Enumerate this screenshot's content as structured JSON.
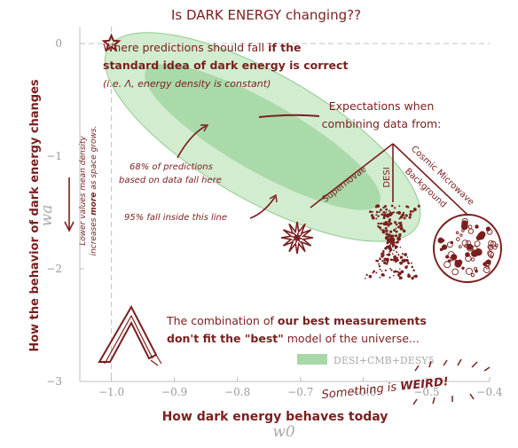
{
  "title": "Is DARK ENERGY changing??",
  "colors": {
    "ink": "#7a1f1f",
    "contour_inner": "#a8d8a8",
    "contour_outer": "#cfeccc",
    "contour_edge": "#8cc88c",
    "axis": "#bdbdbd",
    "tick_text": "#9a9a9a"
  },
  "chart_data": {
    "type": "contour",
    "xlabel": "w0",
    "ylabel": "wa",
    "xlim": [
      -1.05,
      -0.4
    ],
    "ylim": [
      -3,
      0.15
    ],
    "xticks": [
      -1.0,
      -0.9,
      -0.8,
      -0.7,
      -0.6,
      -0.5,
      -0.4
    ],
    "xtick_labels": [
      "−1.0",
      "−0.9",
      "−0.8",
      "−0.7",
      "−0.6",
      "−0.5",
      "−0.4"
    ],
    "yticks": [
      0,
      -1,
      -2,
      -3
    ],
    "ytick_labels": [
      "0",
      "−1",
      "−2",
      "−3"
    ],
    "reference_point": {
      "x": -1.0,
      "y": 0.0,
      "marker": "star"
    },
    "reference_lines": {
      "x": -1.0,
      "y": 0.0,
      "style": "dashed"
    },
    "series": [
      {
        "name": "DESI+CMB+DESY5",
        "contours": [
          {
            "level": "68%",
            "center": [
              -0.76,
              -0.83
            ],
            "axis_end": [
              -0.575,
              -1.42
            ],
            "half_width": 0.055
          },
          {
            "level": "95%",
            "center": [
              -0.76,
              -0.83
            ],
            "axis_end": [
              -0.515,
              -1.62
            ],
            "half_width": 0.1
          }
        ]
      }
    ],
    "legend": {
      "position": "bottom-right",
      "label": "DESI+CMB+DESY5"
    }
  },
  "axes_text": {
    "x_description": "How dark energy behaves today",
    "y_description": "How the behavior of dark energy changes",
    "y_side_note_1": "Lower values mean density",
    "y_side_note_2a": "increases ",
    "y_side_note_2b": "more",
    "y_side_note_2c": " as space grows."
  },
  "annotations": {
    "star_line1_a": "Where predictions should fall ",
    "star_line1_b": "if the",
    "star_line2": "standard idea of dark energy is correct",
    "star_line3": "(i.e. Λ, energy density is constant)",
    "expect_line1": "Expectations when",
    "expect_line2": "combining data from:",
    "tree_supernovae": "Supernovae",
    "tree_desi": "DESI",
    "tree_cmb_1": "Cosmic Microwave",
    "tree_cmb_2": "Background",
    "inner_line1": "68% of predictions",
    "inner_line2": "based on data fall here",
    "outer_line": "95% fall inside this line",
    "bottom_line1_a": "The combination of ",
    "bottom_line1_b": "our best measurements",
    "bottom_line2_a": "don't fit the ",
    "bottom_line2_b": "\"best\"",
    "bottom_line2_c": " model of the universe...",
    "weird_a": "Something is ",
    "weird_b": "WEIRD!"
  }
}
